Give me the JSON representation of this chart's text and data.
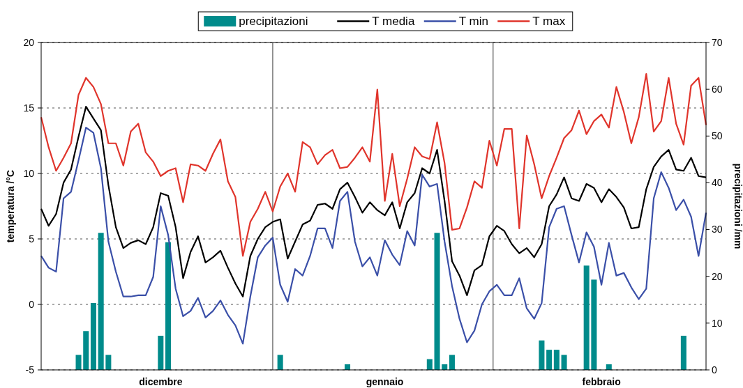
{
  "chart_data": {
    "type": "line",
    "ylabel": "temperatura /°C",
    "y2label": "precipitazioni /mm",
    "categories": [
      null,
      null,
      null,
      null,
      null,
      null,
      null,
      null,
      null,
      null,
      null,
      null,
      null,
      null,
      null,
      null,
      "dicembre",
      null,
      null,
      null,
      null,
      null,
      null,
      null,
      null,
      null,
      null,
      null,
      null,
      null,
      null,
      null,
      null,
      null,
      null,
      null,
      null,
      null,
      null,
      null,
      null,
      null,
      null,
      null,
      null,
      null,
      "gennaio",
      null,
      null,
      null,
      null,
      null,
      null,
      null,
      null,
      null,
      null,
      null,
      null,
      null,
      null,
      null,
      null,
      null,
      null,
      null,
      null,
      null,
      null,
      null,
      null,
      null,
      null,
      null,
      null,
      "febbraio",
      null,
      null,
      null,
      null,
      null,
      null,
      null,
      null,
      null,
      null,
      null,
      null,
      null,
      null
    ],
    "ylim": [
      -5,
      20
    ],
    "yticks": [
      -5,
      0,
      5,
      10,
      15,
      20
    ],
    "y2lim": [
      0,
      70
    ],
    "y2ticks": [
      0,
      10,
      20,
      30,
      40,
      50,
      60,
      70
    ],
    "grid": "y",
    "legend": "top",
    "series": [
      {
        "name": "precipitazioni",
        "type": "bar",
        "axis": "y2",
        "color": "#008b8b",
        "values": [
          null,
          null,
          null,
          null,
          null,
          3.2,
          8.3,
          14.3,
          29.3,
          3.2,
          null,
          null,
          null,
          null,
          null,
          null,
          7.3,
          27.3,
          null,
          null,
          null,
          null,
          null,
          null,
          null,
          null,
          null,
          null,
          null,
          null,
          null,
          null,
          3.2,
          null,
          null,
          null,
          null,
          null,
          null,
          null,
          null,
          1.2,
          null,
          null,
          null,
          null,
          null,
          null,
          null,
          null,
          null,
          null,
          2.3,
          29.3,
          1.2,
          3.2,
          null,
          null,
          null,
          null,
          null,
          null,
          null,
          null,
          null,
          null,
          null,
          6.3,
          4.3,
          4.3,
          3.2,
          null,
          null,
          22.3,
          19.3,
          null,
          1.2,
          null,
          null,
          null,
          null,
          null,
          null,
          null,
          null,
          null,
          7.3,
          null,
          null,
          null
        ]
      },
      {
        "name": "T media",
        "color": "#000000",
        "values": [
          7.3,
          6.0,
          6.9,
          9.3,
          10.3,
          12.8,
          15.1,
          14.2,
          13.3,
          9.1,
          5.9,
          4.3,
          4.7,
          4.9,
          4.6,
          5.9,
          8.5,
          8.3,
          5.9,
          2.0,
          4.0,
          5.2,
          3.2,
          3.6,
          4.1,
          2.8,
          1.6,
          0.6,
          3.7,
          5.0,
          5.9,
          6.3,
          6.5,
          3.5,
          4.8,
          6.1,
          6.4,
          7.6,
          7.7,
          7.3,
          8.8,
          9.3,
          8.2,
          7.0,
          7.8,
          7.2,
          6.8,
          7.8,
          5.8,
          7.8,
          8.5,
          10.4,
          10.0,
          11.8,
          7.9,
          3.3,
          2.2,
          0.7,
          2.6,
          3.0,
          5.2,
          6.0,
          5.6,
          4.6,
          3.9,
          4.3,
          3.6,
          4.6,
          7.5,
          8.4,
          9.7,
          8.1,
          7.9,
          9.2,
          8.9,
          7.8,
          8.8,
          8.2,
          7.4,
          5.8,
          5.9,
          8.8,
          10.5,
          11.3,
          11.8,
          10.3,
          10.2,
          11.2,
          9.8,
          9.7
        ]
      },
      {
        "name": "T min",
        "color": "#3a4fa8",
        "values": [
          3.7,
          2.8,
          2.5,
          8.1,
          8.6,
          11.0,
          13.5,
          13.1,
          10.4,
          4.8,
          2.5,
          0.6,
          0.6,
          0.7,
          0.7,
          2.1,
          7.5,
          5.3,
          1.2,
          -0.9,
          -0.5,
          0.5,
          -1.0,
          -0.5,
          0.3,
          -0.8,
          -1.6,
          -3.0,
          0.6,
          3.6,
          4.5,
          5.1,
          1.5,
          0.2,
          2.7,
          2.2,
          3.7,
          5.8,
          5.8,
          4.3,
          7.9,
          8.6,
          4.8,
          2.9,
          3.6,
          2.2,
          4.9,
          3.8,
          3.0,
          5.6,
          4.5,
          9.9,
          9.0,
          9.2,
          4.8,
          1.4,
          -1.1,
          -2.9,
          -2.0,
          0.0,
          1.0,
          1.5,
          0.7,
          0.7,
          2.0,
          -0.3,
          -1.1,
          0.1,
          5.9,
          7.3,
          7.5,
          5.3,
          3.2,
          5.5,
          4.4,
          1.5,
          4.7,
          2.2,
          2.4,
          1.3,
          0.4,
          1.2,
          8.1,
          10.1,
          8.9,
          7.2,
          8.0,
          6.7,
          3.7,
          7.0
        ]
      },
      {
        "name": "T max",
        "color": "#e0342b",
        "values": [
          14.3,
          12.0,
          10.2,
          11.2,
          12.3,
          16.0,
          17.3,
          16.6,
          15.3,
          12.3,
          12.3,
          10.6,
          13.2,
          13.8,
          11.6,
          10.9,
          9.8,
          10.2,
          10.4,
          7.8,
          10.7,
          10.6,
          10.2,
          11.5,
          12.6,
          9.4,
          8.2,
          3.7,
          6.3,
          7.3,
          8.6,
          7.1,
          9.0,
          10.0,
          8.6,
          12.4,
          12.0,
          10.7,
          11.4,
          11.8,
          10.4,
          10.5,
          11.2,
          12.0,
          10.9,
          16.4,
          7.9,
          11.5,
          7.5,
          9.6,
          12.0,
          11.3,
          11.1,
          13.9,
          10.8,
          5.7,
          5.8,
          7.4,
          9.4,
          8.9,
          12.5,
          10.6,
          13.4,
          13.4,
          5.8,
          12.9,
          10.7,
          8.1,
          9.8,
          11.2,
          12.7,
          13.3,
          14.8,
          13.0,
          14.0,
          14.5,
          13.5,
          16.6,
          14.7,
          12.3,
          14.3,
          17.6,
          13.2,
          14.0,
          17.3,
          13.8,
          12.2,
          16.7,
          17.3,
          13.7
        ]
      }
    ]
  }
}
